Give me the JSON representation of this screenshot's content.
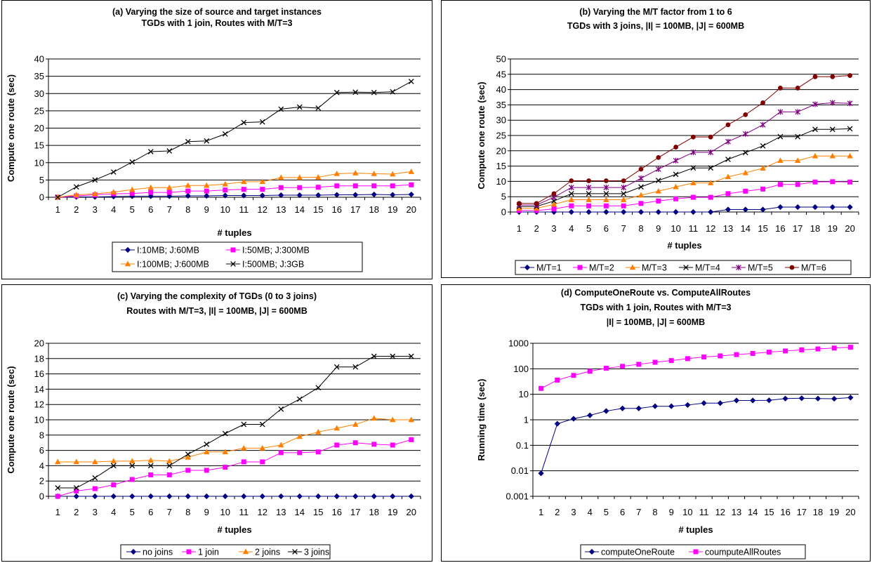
{
  "chart_data": [
    {
      "type": "line",
      "title_lines": [
        "(a)      Varying the size of source and target instances",
        "TGDs with 1 join, Routes with M/T=3"
      ],
      "xlabel": "# tuples",
      "ylabel": "Compute one route (sec)",
      "x": [
        1,
        2,
        3,
        4,
        5,
        6,
        7,
        8,
        9,
        10,
        11,
        12,
        13,
        14,
        15,
        16,
        17,
        18,
        19,
        20
      ],
      "ylim": [
        0,
        40
      ],
      "yticks": [
        0,
        5,
        10,
        15,
        20,
        25,
        30,
        35,
        40
      ],
      "yscale": "linear",
      "grid": true,
      "legend": "bottom",
      "legend_rows": [
        [
          0,
          1
        ],
        [
          2,
          3
        ]
      ],
      "series": [
        {
          "name": "I:10MB; J:60MB",
          "color": "#000080",
          "marker": "diamond",
          "values": [
            0,
            0.1,
            0.1,
            0.2,
            0.3,
            0.3,
            0.3,
            0.4,
            0.4,
            0.5,
            0.5,
            0.5,
            0.6,
            0.6,
            0.6,
            0.7,
            0.7,
            0.8,
            0.7,
            0.8
          ]
        },
        {
          "name": "I:50MB; J:300MB",
          "color": "#ff00ff",
          "marker": "square",
          "values": [
            0,
            0.4,
            0.7,
            1.0,
            1.1,
            1.4,
            1.4,
            1.8,
            1.8,
            2.1,
            2.3,
            2.3,
            2.8,
            2.8,
            2.9,
            3.3,
            3.3,
            3.3,
            3.3,
            3.6
          ]
        },
        {
          "name": "I:100MB; J:600MB",
          "color": "#ff8000",
          "marker": "triangle",
          "values": [
            0,
            0.7,
            1.0,
            1.5,
            2.2,
            2.8,
            2.8,
            3.4,
            3.4,
            3.8,
            4.5,
            4.5,
            5.7,
            5.7,
            5.8,
            6.8,
            7.0,
            6.8,
            6.7,
            7.4
          ]
        },
        {
          "name": "I:500MB; J:3GB",
          "color": "#000000",
          "marker": "x",
          "values": [
            0,
            3.0,
            5.0,
            7.3,
            10.2,
            13.2,
            13.4,
            16.1,
            16.3,
            18.3,
            21.6,
            21.8,
            25.5,
            26.1,
            25.8,
            30.3,
            30.4,
            30.3,
            30.5,
            33.5
          ]
        }
      ]
    },
    {
      "type": "line",
      "title_lines": [
        "(b)             Varying the M/T factor from 1 to 6",
        "TGDs with 3 joins, |I| = 100MB, |J| = 600MB"
      ],
      "xlabel": "# tuples",
      "ylabel": "Compute one route (sec)",
      "x": [
        1,
        2,
        3,
        4,
        5,
        6,
        7,
        8,
        9,
        10,
        11,
        12,
        13,
        14,
        15,
        16,
        17,
        18,
        19,
        20
      ],
      "ylim": [
        0,
        50
      ],
      "yticks": [
        0,
        5,
        10,
        15,
        20,
        25,
        30,
        35,
        40,
        45,
        50
      ],
      "yscale": "linear",
      "grid": true,
      "legend": "bottom",
      "legend_rows": [
        [
          0,
          1,
          2,
          3,
          4,
          5
        ]
      ],
      "series": [
        {
          "name": "M/T=1",
          "color": "#000080",
          "marker": "diamond",
          "values": [
            0,
            0,
            0,
            0,
            0,
            0,
            0,
            0,
            0,
            0,
            0,
            0,
            0.8,
            0.8,
            0.8,
            1.6,
            1.6,
            1.6,
            1.6,
            1.6
          ]
        },
        {
          "name": "M/T=2",
          "color": "#ff00ff",
          "marker": "square",
          "values": [
            0.5,
            0.5,
            1.0,
            2.0,
            2.0,
            2.0,
            2.0,
            2.8,
            3.6,
            4.3,
            4.8,
            4.8,
            6.0,
            6.8,
            7.5,
            9.0,
            9.0,
            9.8,
            9.9,
            9.8
          ]
        },
        {
          "name": "M/T=3",
          "color": "#ff8000",
          "marker": "triangle",
          "values": [
            1.2,
            1.2,
            2.5,
            4.0,
            4.0,
            4.0,
            4.0,
            5.5,
            6.8,
            8.2,
            9.5,
            9.5,
            11.5,
            12.8,
            14.3,
            16.8,
            16.8,
            18.3,
            18.3,
            18.3
          ]
        },
        {
          "name": "M/T=4",
          "color": "#000000",
          "marker": "x",
          "values": [
            1.8,
            1.8,
            3.6,
            6.0,
            6.0,
            6.0,
            6.0,
            8.2,
            10.3,
            12.3,
            14.4,
            14.4,
            17.2,
            19.4,
            21.6,
            24.6,
            24.6,
            27.0,
            27.0,
            27.2
          ]
        },
        {
          "name": "M/T=5",
          "color": "#800080",
          "marker": "star",
          "values": [
            2.3,
            2.3,
            4.8,
            8.0,
            8.0,
            8.0,
            8.0,
            11.0,
            14.0,
            16.8,
            19.5,
            19.5,
            23.0,
            25.5,
            28.5,
            32.7,
            32.7,
            35.2,
            35.7,
            35.5
          ]
        },
        {
          "name": "M/T=6",
          "color": "#800000",
          "marker": "circle",
          "values": [
            2.8,
            2.8,
            6.0,
            10.2,
            10.2,
            10.2,
            10.2,
            14.0,
            17.8,
            21.2,
            24.5,
            24.5,
            28.5,
            31.8,
            35.7,
            40.5,
            40.5,
            44.2,
            44.2,
            44.6
          ]
        }
      ]
    },
    {
      "type": "line",
      "title_lines": [
        "(c)        Varying the complexity of TGDs (0 to 3 joins)",
        "Routes with M/T=3, |I| = 100MB, |J| = 600MB"
      ],
      "xlabel": "# tuples",
      "ylabel": "Compute one route (sec)",
      "x": [
        1,
        2,
        3,
        4,
        5,
        6,
        7,
        8,
        9,
        10,
        11,
        12,
        13,
        14,
        15,
        16,
        17,
        18,
        19,
        20
      ],
      "ylim": [
        0,
        20
      ],
      "yticks": [
        0,
        2,
        4,
        6,
        8,
        10,
        12,
        14,
        16,
        18,
        20
      ],
      "yscale": "linear",
      "grid": true,
      "legend": "bottom",
      "legend_rows": [
        [
          0,
          1,
          2,
          3
        ]
      ],
      "series": [
        {
          "name": "no joins",
          "color": "#000080",
          "marker": "diamond",
          "values": [
            0,
            0,
            0,
            0,
            0,
            0,
            0,
            0,
            0,
            0,
            0,
            0,
            0,
            0,
            0,
            0,
            0,
            0,
            0,
            0
          ]
        },
        {
          "name": "1 join",
          "color": "#ff00ff",
          "marker": "square",
          "values": [
            0,
            0.7,
            1.0,
            1.5,
            2.2,
            2.8,
            2.8,
            3.4,
            3.4,
            3.8,
            4.5,
            4.5,
            5.7,
            5.7,
            5.8,
            6.7,
            7.0,
            6.8,
            6.7,
            7.4
          ]
        },
        {
          "name": "2 joins",
          "color": "#ff8000",
          "marker": "triangle",
          "values": [
            4.5,
            4.5,
            4.5,
            4.6,
            4.6,
            4.7,
            4.6,
            5.1,
            5.8,
            5.8,
            6.3,
            6.3,
            6.7,
            7.8,
            8.4,
            8.9,
            9.4,
            10.2,
            10.0,
            10.0
          ]
        },
        {
          "name": "3 joins",
          "color": "#000000",
          "marker": "x",
          "values": [
            1.1,
            1.1,
            2.4,
            4.0,
            4.0,
            4.0,
            4.0,
            5.5,
            6.8,
            8.2,
            9.4,
            9.4,
            11.4,
            12.7,
            14.2,
            16.9,
            16.9,
            18.3,
            18.3,
            18.3
          ]
        }
      ]
    },
    {
      "type": "line",
      "title_lines": [
        "(d)      ComputeOneRoute vs. ComputeAllRoutes",
        "TGDs with 1 join, Routes with M/T=3",
        "|I| = 100MB, |J| = 600MB"
      ],
      "xlabel": "# tuples",
      "ylabel": "Running time (sec)",
      "x": [
        1,
        2,
        3,
        4,
        5,
        6,
        7,
        8,
        9,
        10,
        11,
        12,
        13,
        14,
        15,
        16,
        17,
        18,
        19,
        20
      ],
      "ylim": [
        0.001,
        1000
      ],
      "yticks": [
        0.001,
        0.01,
        0.1,
        1,
        10,
        100,
        1000
      ],
      "ytick_labels": [
        "0.001",
        "0.01",
        "0.1",
        "1",
        "10",
        "100",
        "1000"
      ],
      "yscale": "log",
      "grid": true,
      "legend": "bottom",
      "legend_rows": [
        [
          0,
          1
        ]
      ],
      "series": [
        {
          "name": "computeOneRoute",
          "color": "#000080",
          "marker": "diamond",
          "values": [
            0.008,
            0.7,
            1.1,
            1.5,
            2.2,
            2.8,
            2.8,
            3.4,
            3.4,
            3.8,
            4.5,
            4.5,
            5.7,
            5.7,
            5.8,
            6.8,
            7.0,
            6.8,
            6.7,
            7.4
          ]
        },
        {
          "name": "coumputeAllRoutes",
          "color": "#ff00ff",
          "marker": "square",
          "values": [
            17,
            36,
            55,
            80,
            105,
            125,
            150,
            180,
            210,
            250,
            290,
            320,
            360,
            400,
            450,
            500,
            550,
            600,
            650,
            700
          ]
        }
      ]
    }
  ]
}
